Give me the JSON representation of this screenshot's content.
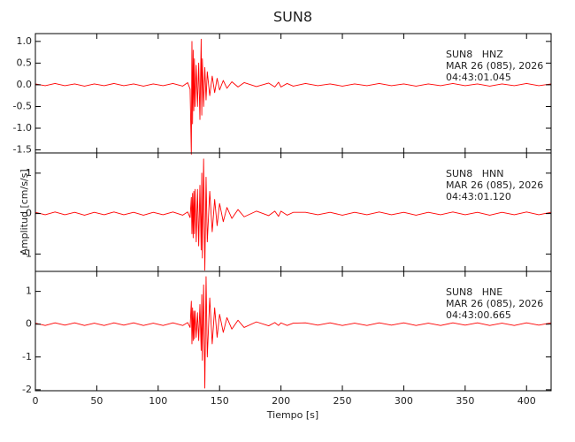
{
  "chart_data": [
    {
      "type": "line",
      "title": "SUN8",
      "annotation": [
        "SUN8   HNZ",
        "MAR 26 (085), 2026",
        "04:43:01.045"
      ],
      "xlim": [
        0,
        420
      ],
      "xticks": [
        0,
        50,
        100,
        150,
        200,
        250,
        300,
        350,
        400
      ],
      "ylim": [
        -1.57,
        1.18
      ],
      "yticks": [
        -1.5,
        {
          "value": -1,
          "label": "-1.0"
        },
        -0.5,
        {
          "value": 0,
          "label": "0.0"
        },
        0.5,
        {
          "value": 1,
          "label": "1.0"
        }
      ],
      "color": "#ff0000",
      "x": [
        0,
        8,
        16,
        24,
        32,
        40,
        48,
        56,
        64,
        72,
        80,
        88,
        96,
        104,
        112,
        120,
        124,
        126,
        127,
        127.5,
        128,
        128.5,
        129,
        129.5,
        130,
        131,
        132,
        133,
        134,
        135,
        135.5,
        136,
        137,
        138,
        139,
        140,
        142,
        144,
        146,
        148,
        150,
        153,
        156,
        160,
        165,
        170,
        180,
        190,
        195,
        198,
        200,
        205,
        210,
        220,
        230,
        240,
        250,
        260,
        270,
        280,
        290,
        300,
        310,
        320,
        330,
        340,
        350,
        360,
        370,
        380,
        390,
        400,
        410,
        420
      ],
      "values": [
        0.02,
        -0.02,
        0.03,
        -0.02,
        0.02,
        -0.03,
        0.02,
        -0.02,
        0.03,
        -0.02,
        0.02,
        -0.03,
        0.02,
        -0.02,
        0.03,
        -0.03,
        0.05,
        -0.1,
        -1.6,
        1.0,
        -0.9,
        0.8,
        -0.6,
        0.6,
        -0.5,
        0.45,
        -0.5,
        0.5,
        -0.8,
        1.05,
        -0.7,
        0.6,
        -0.5,
        0.4,
        -0.35,
        0.3,
        -0.25,
        0.2,
        -0.18,
        0.15,
        -0.12,
        0.1,
        -0.08,
        0.07,
        -0.05,
        0.05,
        -0.04,
        0.04,
        -0.05,
        0.06,
        -0.05,
        0.03,
        -0.03,
        0.03,
        -0.02,
        0.02,
        -0.03,
        0.02,
        -0.02,
        0.03,
        -0.02,
        0.02,
        -0.03,
        0.02,
        -0.02,
        0.03,
        -0.02,
        0.02,
        -0.03,
        0.02,
        -0.02,
        0.03,
        -0.02,
        0.02
      ]
    },
    {
      "type": "line",
      "y_label": "Amplitud [cm/s/s]",
      "annotation": [
        "SUN8   HNN",
        "MAR 26 (085), 2026",
        "04:43:01.120"
      ],
      "xlim": [
        0,
        420
      ],
      "xticks": [
        0,
        50,
        100,
        150,
        200,
        250,
        300,
        350,
        400
      ],
      "ylim": [
        -1.43,
        1.5
      ],
      "yticks": [
        -1,
        0,
        1
      ],
      "color": "#ff0000",
      "x": [
        0,
        8,
        16,
        24,
        32,
        40,
        48,
        56,
        64,
        72,
        80,
        88,
        96,
        104,
        112,
        120,
        124,
        126,
        127,
        127.5,
        128,
        128.5,
        129,
        129.5,
        130,
        131,
        132,
        133,
        134,
        135,
        135.5,
        136,
        137,
        138,
        139,
        140,
        142,
        144,
        146,
        148,
        150,
        153,
        156,
        160,
        165,
        170,
        180,
        190,
        195,
        198,
        200,
        205,
        210,
        220,
        230,
        240,
        250,
        260,
        270,
        280,
        290,
        300,
        310,
        320,
        330,
        340,
        350,
        360,
        370,
        380,
        390,
        400,
        410,
        420
      ],
      "values": [
        0.03,
        -0.03,
        0.04,
        -0.03,
        0.03,
        -0.04,
        0.03,
        -0.03,
        0.04,
        -0.03,
        0.03,
        -0.04,
        0.03,
        -0.03,
        0.04,
        -0.04,
        0.04,
        -0.1,
        0.4,
        -0.5,
        0.5,
        -0.6,
        0.55,
        -0.5,
        0.6,
        -0.7,
        0.6,
        -0.8,
        0.7,
        -0.9,
        1.0,
        -1.1,
        1.35,
        -1.4,
        0.9,
        -0.7,
        0.55,
        -0.45,
        0.35,
        -0.3,
        0.25,
        -0.2,
        0.15,
        -0.12,
        0.1,
        -0.08,
        0.06,
        -0.05,
        0.06,
        -0.07,
        0.06,
        -0.04,
        0.03,
        0.03,
        -0.03,
        0.03,
        -0.04,
        0.03,
        -0.03,
        0.04,
        -0.03,
        0.03,
        -0.04,
        0.03,
        -0.03,
        0.04,
        -0.03,
        0.03,
        -0.04,
        0.03,
        -0.03,
        0.04,
        -0.03,
        0.03
      ]
    },
    {
      "type": "line",
      "x_label": "Tiempo [s]",
      "annotation": [
        "SUN8   HNE",
        "MAR 26 (085), 2026",
        "04:43:00.665"
      ],
      "xlim": [
        0,
        420
      ],
      "xticks": [
        0,
        50,
        100,
        150,
        200,
        250,
        300,
        350,
        400
      ],
      "ylim": [
        -2.03,
        1.61
      ],
      "yticks": [
        -2,
        -1,
        0,
        1
      ],
      "color": "#ff0000",
      "x": [
        0,
        8,
        16,
        24,
        32,
        40,
        48,
        56,
        64,
        72,
        80,
        88,
        96,
        104,
        112,
        120,
        124,
        126,
        127,
        127.5,
        128,
        128.5,
        129,
        129.5,
        130,
        131,
        132,
        133,
        134,
        135,
        135.5,
        136,
        137,
        138,
        139,
        140,
        142,
        144,
        146,
        148,
        150,
        153,
        156,
        160,
        165,
        170,
        180,
        190,
        195,
        198,
        200,
        205,
        210,
        220,
        230,
        240,
        250,
        260,
        270,
        280,
        290,
        300,
        310,
        320,
        330,
        340,
        350,
        360,
        370,
        380,
        390,
        400,
        410,
        420
      ],
      "values": [
        0.03,
        -0.04,
        0.04,
        -0.03,
        0.04,
        -0.04,
        0.03,
        -0.04,
        0.04,
        -0.03,
        0.04,
        -0.04,
        0.03,
        -0.04,
        0.04,
        -0.04,
        0.05,
        -0.1,
        0.7,
        -0.6,
        0.5,
        -0.5,
        0.4,
        -0.45,
        0.4,
        -0.4,
        0.35,
        -0.5,
        0.6,
        -0.8,
        0.9,
        -1.1,
        1.2,
        -1.95,
        1.45,
        -1.0,
        0.8,
        -0.6,
        0.5,
        -0.4,
        0.3,
        -0.25,
        0.2,
        -0.15,
        0.12,
        -0.1,
        0.07,
        -0.05,
        0.05,
        -0.04,
        0.04,
        -0.04,
        0.03,
        0.04,
        -0.03,
        0.04,
        -0.04,
        0.03,
        -0.04,
        0.04,
        -0.03,
        0.04,
        -0.04,
        0.03,
        -0.04,
        0.04,
        -0.03,
        0.04,
        -0.04,
        0.03,
        -0.04,
        0.04,
        -0.03,
        0.04
      ]
    }
  ]
}
